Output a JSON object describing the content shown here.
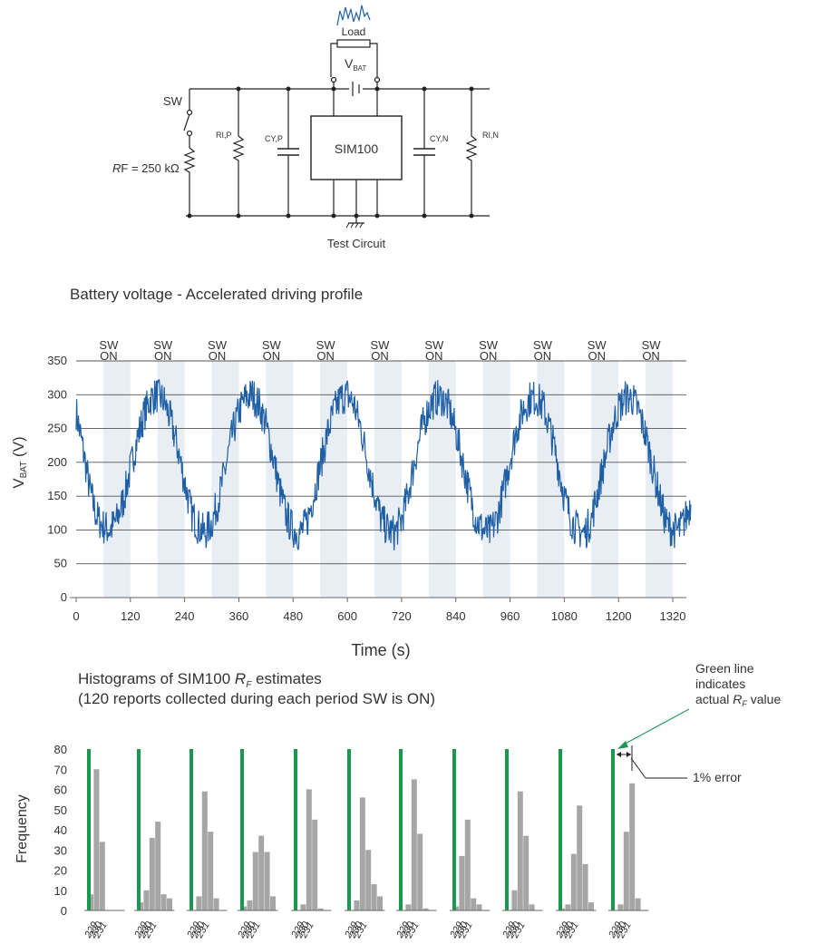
{
  "circuit": {
    "load_label": "Load",
    "vbat_main": "V",
    "vbat_sub": "BAT",
    "sw_label": "SW",
    "rf_label_italic": "R",
    "rf_label_rest": "F = 250 kΩ",
    "rip_main": "RI,P",
    "cyp_main": "CY,P",
    "chip_label": "SIM100",
    "cyn_main": "CY,N",
    "rin_main": "RI,N",
    "caption": "Test Circuit"
  },
  "chart_data": [
    {
      "type": "line",
      "title": "Battery voltage - Accelerated driving profile",
      "xlabel": "Time (s)",
      "ylabel_main": "V",
      "ylabel_sub": "BAT",
      "ylabel_unit": " (V)",
      "xlim": [
        0,
        1380
      ],
      "ylim": [
        0,
        350
      ],
      "xticks": [
        0,
        120,
        240,
        360,
        480,
        600,
        720,
        840,
        960,
        1080,
        1200,
        1320
      ],
      "yticks": [
        0,
        50,
        100,
        150,
        200,
        250,
        300,
        350
      ],
      "grid": "horizontal",
      "sw_on_label_top": "SW",
      "sw_on_label_bottom": "ON",
      "sw_on_periods": [
        [
          60,
          120
        ],
        [
          180,
          240
        ],
        [
          300,
          360
        ],
        [
          420,
          480
        ],
        [
          540,
          600
        ],
        [
          660,
          720
        ],
        [
          780,
          840
        ],
        [
          900,
          960
        ],
        [
          1020,
          1080
        ],
        [
          1140,
          1200
        ],
        [
          1260,
          1320
        ]
      ],
      "series": [
        {
          "color": "#1f5fa6",
          "x": [
            0,
            15,
            30,
            45,
            60,
            75,
            90,
            105,
            120,
            135,
            150,
            165,
            180,
            195,
            210,
            225,
            240,
            255,
            270,
            285,
            300,
            315,
            330,
            345,
            360,
            375,
            390,
            405,
            420,
            435,
            450,
            465,
            480,
            495,
            510,
            525,
            540,
            555,
            570,
            585,
            600,
            615,
            630,
            645,
            660,
            675,
            690,
            705,
            720,
            735,
            750,
            765,
            780,
            795,
            810,
            825,
            840,
            855,
            870,
            885,
            900,
            915,
            930,
            945,
            960,
            975,
            990,
            1005,
            1020,
            1035,
            1050,
            1065,
            1080,
            1095,
            1110,
            1125,
            1140,
            1155,
            1170,
            1185,
            1200,
            1215,
            1230,
            1245,
            1260,
            1275,
            1290,
            1305,
            1320,
            1335,
            1350,
            1365,
            1380
          ],
          "y": [
            275,
            220,
            160,
            120,
            105,
            100,
            115,
            145,
            190,
            235,
            270,
            295,
            300,
            290,
            260,
            220,
            170,
            125,
            105,
            95,
            110,
            145,
            190,
            240,
            275,
            295,
            300,
            285,
            255,
            210,
            160,
            120,
            100,
            95,
            110,
            150,
            195,
            240,
            275,
            295,
            300,
            285,
            250,
            200,
            155,
            115,
            100,
            95,
            115,
            155,
            205,
            250,
            280,
            295,
            295,
            280,
            245,
            200,
            155,
            115,
            100,
            95,
            115,
            155,
            205,
            250,
            280,
            295,
            295,
            280,
            245,
            200,
            150,
            115,
            100,
            95,
            115,
            160,
            205,
            250,
            280,
            295,
            295,
            275,
            240,
            195,
            150,
            110,
            100,
            100,
            120,
            150,
            160
          ]
        }
      ]
    },
    {
      "type": "bar",
      "title_line1_pre": "Histograms of SIM100 ",
      "title_line1_italic": "R",
      "title_line1_sub": "F",
      "title_line1_post": " estimates",
      "title_line2": "(120 reports collected during each period SW is ON)",
      "ylabel": "Frequency",
      "ylim": [
        0,
        80
      ],
      "yticks": [
        0,
        10,
        20,
        30,
        40,
        50,
        60,
        70,
        80
      ],
      "x_tick_labels": [
        "229",
        "230",
        "231"
      ],
      "reference_line_color": "#1a9850",
      "bar_color": "#a6a6a6",
      "groups": [
        [
          8,
          70,
          34,
          0,
          0,
          0
        ],
        [
          4,
          10,
          36,
          44,
          8,
          6
        ],
        [
          0,
          7,
          59,
          39,
          6,
          0
        ],
        [
          2,
          5,
          29,
          37,
          29,
          7
        ],
        [
          0,
          3,
          60,
          45,
          1,
          0
        ],
        [
          0,
          5,
          56,
          30,
          13,
          7
        ],
        [
          0,
          3,
          65,
          38,
          1,
          0
        ],
        [
          2,
          27,
          45,
          6,
          3,
          0
        ],
        [
          0,
          10,
          59,
          37,
          3,
          0
        ],
        [
          1,
          3,
          28,
          52,
          23,
          4
        ],
        [
          0,
          3,
          39,
          63,
          6,
          0
        ]
      ],
      "annotation_green": [
        "Green line",
        "indicates"
      ],
      "annotation_green_last_pre": "actual ",
      "annotation_green_last_italic": "R",
      "annotation_green_last_sub": "F",
      "annotation_green_last_post": " value",
      "annotation_error": "1% error"
    }
  ]
}
